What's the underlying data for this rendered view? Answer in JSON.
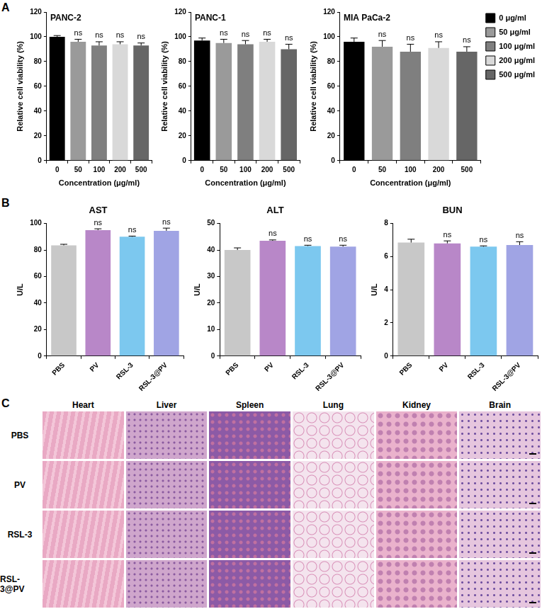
{
  "chart_data": [
    {
      "type": "bar",
      "panel": "A",
      "title": "PANC-2",
      "x_label": "Concentration (μg/ml)",
      "y_label": "Relative cell viability (%)",
      "categories": [
        "0",
        "50",
        "100",
        "200",
        "500"
      ],
      "values": [
        100,
        96,
        93,
        94,
        93
      ],
      "errors": [
        1,
        2,
        3,
        2,
        2
      ],
      "colors": [
        "#000000",
        "#9a9a9a",
        "#7f7f7f",
        "#d9d9d9",
        "#666666"
      ],
      "ylim": [
        0,
        120
      ],
      "yticks": [
        0,
        20,
        40,
        60,
        80,
        100,
        120
      ],
      "grid": false,
      "annotations": [
        {
          "category": "50",
          "text": "ns"
        },
        {
          "category": "100",
          "text": "ns"
        },
        {
          "category": "200",
          "text": "ns"
        },
        {
          "category": "500",
          "text": "ns"
        }
      ]
    },
    {
      "type": "bar",
      "panel": "A",
      "title": "PANC-1",
      "x_label": "Concentration (μg/ml)",
      "y_label": "Relative cell viability (%)",
      "categories": [
        "0",
        "50",
        "100",
        "200",
        "500"
      ],
      "values": [
        97,
        95,
        94,
        96,
        90
      ],
      "errors": [
        2,
        3,
        3,
        2,
        4
      ],
      "colors": [
        "#000000",
        "#9a9a9a",
        "#7f7f7f",
        "#d9d9d9",
        "#666666"
      ],
      "ylim": [
        0,
        120
      ],
      "yticks": [
        0,
        20,
        40,
        60,
        80,
        100,
        120
      ],
      "grid": false,
      "annotations": [
        {
          "category": "50",
          "text": "ns"
        },
        {
          "category": "100",
          "text": "ns"
        },
        {
          "category": "200",
          "text": "ns"
        },
        {
          "category": "500",
          "text": "ns"
        }
      ]
    },
    {
      "type": "bar",
      "panel": "A",
      "title": "MIA PaCa-2",
      "x_label": "Concentration (μg/ml)",
      "y_label": "Relative cell viability (%)",
      "categories": [
        "0",
        "50",
        "100",
        "200",
        "500"
      ],
      "values": [
        96,
        92,
        88,
        91,
        88
      ],
      "errors": [
        3,
        5,
        6,
        5,
        4
      ],
      "colors": [
        "#000000",
        "#9a9a9a",
        "#7f7f7f",
        "#d9d9d9",
        "#666666"
      ],
      "ylim": [
        0,
        120
      ],
      "yticks": [
        0,
        20,
        40,
        60,
        80,
        100,
        120
      ],
      "grid": false,
      "legend": "right",
      "legend_entries": [
        "0 μg/ml",
        "50 μg/ml",
        "100 μg/ml",
        "200 μg/ml",
        "500 μg/ml"
      ],
      "annotations": [
        {
          "category": "50",
          "text": "ns"
        },
        {
          "category": "100",
          "text": "ns"
        },
        {
          "category": "200",
          "text": "ns"
        },
        {
          "category": "500",
          "text": "ns"
        }
      ]
    },
    {
      "type": "bar",
      "panel": "B",
      "title": "AST",
      "y_label": "U/L",
      "categories": [
        "PBS",
        "PV",
        "RSL-3",
        "RSL-3@PV"
      ],
      "values": [
        83.5,
        95,
        90,
        94.5
      ],
      "errors": [
        0.8,
        1,
        0.5,
        2
      ],
      "colors": [
        "#c8c8c8",
        "#b887c8",
        "#7cc8ef",
        "#a0a4e4"
      ],
      "ylim": [
        0,
        100
      ],
      "yticks": [
        0,
        20,
        40,
        60,
        80,
        100
      ],
      "grid": false,
      "annotations": [
        {
          "category": "PV",
          "text": "ns"
        },
        {
          "category": "RSL-3",
          "text": "ns"
        },
        {
          "category": "RSL-3@PV",
          "text": "ns"
        }
      ]
    },
    {
      "type": "bar",
      "panel": "B",
      "title": "ALT",
      "y_label": "U/L",
      "categories": [
        "PBS",
        "PV",
        "RSL-3",
        "RSL-3@PV"
      ],
      "values": [
        40,
        43.5,
        41.5,
        41.3
      ],
      "errors": [
        0.8,
        0.3,
        0.3,
        0.5
      ],
      "colors": [
        "#c8c8c8",
        "#b887c8",
        "#7cc8ef",
        "#a0a4e4"
      ],
      "ylim": [
        0,
        50
      ],
      "yticks": [
        0,
        10,
        20,
        30,
        40,
        50
      ],
      "grid": false,
      "annotations": [
        {
          "category": "PV",
          "text": "ns"
        },
        {
          "category": "RSL-3",
          "text": "ns"
        },
        {
          "category": "RSL-3@PV",
          "text": "ns"
        }
      ]
    },
    {
      "type": "bar",
      "panel": "B",
      "title": "BUN",
      "y_label": "U/L",
      "categories": [
        "PBS",
        "PV",
        "RSL-3",
        "RSL-3@PV"
      ],
      "values": [
        6.85,
        6.8,
        6.6,
        6.7
      ],
      "errors": [
        0.2,
        0.15,
        0.05,
        0.2
      ],
      "colors": [
        "#c8c8c8",
        "#b887c8",
        "#7cc8ef",
        "#a0a4e4"
      ],
      "ylim": [
        0,
        8
      ],
      "yticks": [
        0,
        2,
        4,
        6,
        8
      ],
      "grid": false,
      "annotations": [
        {
          "category": "PV",
          "text": "ns"
        },
        {
          "category": "RSL-3",
          "text": "ns"
        },
        {
          "category": "RSL-3@PV",
          "text": "ns"
        }
      ]
    }
  ],
  "histology": {
    "panel": "C",
    "columns": [
      "Heart",
      "Liver",
      "Spleen",
      "Lung",
      "Kidney",
      "Brain"
    ],
    "rows": [
      "PBS",
      "PV",
      "RSL-3",
      "RSL-3@PV"
    ]
  }
}
